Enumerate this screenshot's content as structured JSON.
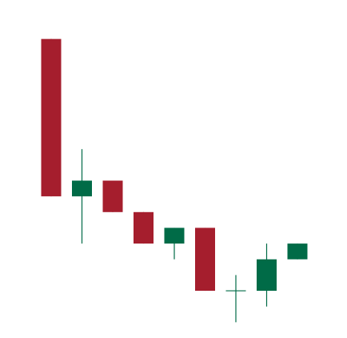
{
  "chart_data": {
    "type": "candlestick",
    "title": "",
    "xlabel": "",
    "ylabel": "",
    "ylim": [
      0,
      100
    ],
    "grid": false,
    "legend": "none",
    "colors": {
      "up": "#006B47",
      "down": "#A51E2D"
    },
    "candles": [
      {
        "open": 95,
        "high": 95,
        "low": 45,
        "close": 45
      },
      {
        "open": 45,
        "high": 60,
        "low": 30,
        "close": 50
      },
      {
        "open": 50,
        "high": 50,
        "low": 40,
        "close": 40
      },
      {
        "open": 40,
        "high": 40,
        "low": 30,
        "close": 30
      },
      {
        "open": 30,
        "high": 35,
        "low": 25,
        "close": 35
      },
      {
        "open": 35,
        "high": 35,
        "low": 15,
        "close": 15
      },
      {
        "open": 15,
        "high": 20,
        "low": 5,
        "close": 15
      },
      {
        "open": 15,
        "high": 30,
        "low": 10,
        "close": 25
      },
      {
        "open": 25,
        "high": 30,
        "low": 25,
        "close": 30
      }
    ]
  }
}
